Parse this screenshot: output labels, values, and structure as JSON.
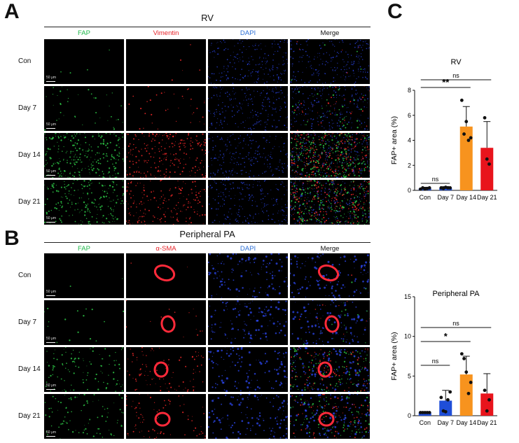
{
  "panels": {
    "a": {
      "letter": "A",
      "title": "RV",
      "channels": [
        "FAP",
        "Vimentin",
        "DAPI",
        "Merge"
      ],
      "channel_colors": [
        "#1fb84a",
        "#e8242a",
        "#2c6fd6",
        "#111111"
      ],
      "rows": [
        "Con",
        "Day 7",
        "Day 14",
        "Day 21"
      ],
      "scale_bar": "50 μm"
    },
    "b": {
      "letter": "B",
      "title": "Peripheral PA",
      "channels": [
        "FAP",
        "α-SMA",
        "DAPI",
        "Merge"
      ],
      "channel_colors": [
        "#1fb84a",
        "#e8242a",
        "#2c6fd6",
        "#111111"
      ],
      "rows": [
        "Con",
        "Day 7",
        "Day 14",
        "Day 21"
      ],
      "scale_bar": "50 μm"
    },
    "c": {
      "letter": "C"
    }
  },
  "chart_data": [
    {
      "type": "bar",
      "title": "RV",
      "ylabel": "FAP+ area (%)",
      "ylim": [
        0,
        8
      ],
      "yticks": [
        0,
        2,
        4,
        6,
        8
      ],
      "categories": [
        "Con",
        "Day 7",
        "Day 14",
        "Day 21"
      ],
      "values": [
        0.15,
        0.2,
        5.1,
        3.4
      ],
      "errors": [
        0.1,
        0.1,
        1.6,
        2.1
      ],
      "points": [
        [
          0.1,
          0.2,
          0.1,
          0.15,
          0.2
        ],
        [
          0.2,
          0.15,
          0.25,
          0.2,
          0.2
        ],
        [
          7.2,
          4.5,
          5.5,
          4.0,
          4.2
        ],
        [
          5.8,
          2.5,
          2.1
        ]
      ],
      "colors": [
        "#1f4ed8",
        "#1f4ed8",
        "#f7931e",
        "#e8141c"
      ],
      "significance": [
        {
          "from": 0,
          "to": 1,
          "label": "ns"
        },
        {
          "from": 0,
          "to": 2,
          "label": "**"
        },
        {
          "from": 0,
          "to": 3,
          "label": "ns"
        }
      ]
    },
    {
      "type": "bar",
      "title": "Peripheral PA",
      "ylabel": "FAP+ area (%)",
      "ylim": [
        0,
        15
      ],
      "yticks": [
        0,
        5,
        10,
        15
      ],
      "categories": [
        "Con",
        "Day 7",
        "Day 14",
        "Day 21"
      ],
      "values": [
        0.4,
        1.9,
        5.2,
        2.8
      ],
      "errors": [
        0.1,
        1.3,
        2.3,
        2.5
      ],
      "points": [
        [
          0.4,
          0.4,
          0.4,
          0.4,
          0.4
        ],
        [
          2.3,
          0.6,
          0.5,
          2.0,
          3.0
        ],
        [
          7.8,
          7.2,
          5.5,
          2.8,
          4.2
        ],
        [
          3.2,
          0.6,
          2.0
        ]
      ],
      "colors": [
        "#1f4ed8",
        "#1f4ed8",
        "#f7931e",
        "#e8141c"
      ],
      "significance": [
        {
          "from": 0,
          "to": 1,
          "label": "ns"
        },
        {
          "from": 0,
          "to": 2,
          "label": "*"
        },
        {
          "from": 0,
          "to": 3,
          "label": "ns"
        }
      ]
    }
  ]
}
